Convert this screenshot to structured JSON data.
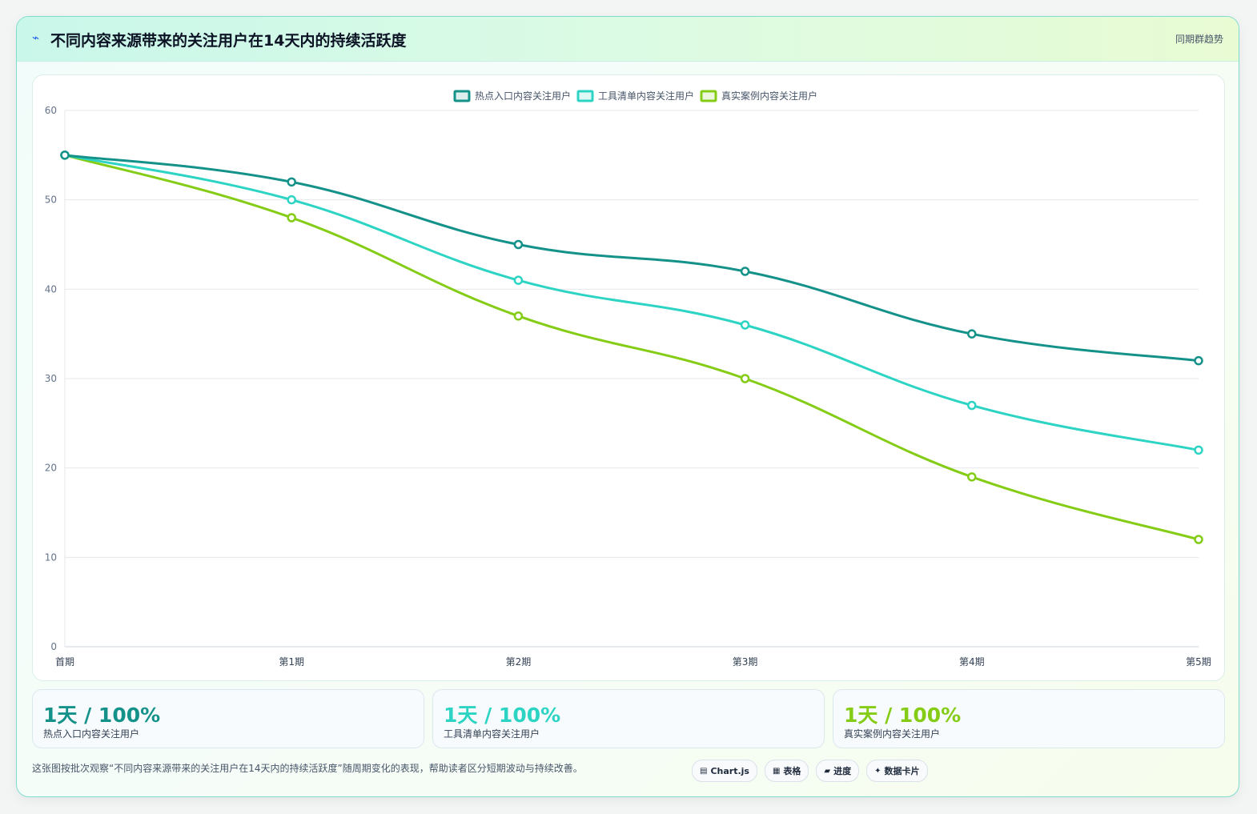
{
  "header": {
    "icon": "lightning-icon",
    "title": "不同内容来源带来的关注用户在14天内的持续活跃度",
    "right_label": "同期群趋势"
  },
  "chart_data": {
    "type": "line",
    "categories": [
      "首期",
      "第1期",
      "第2期",
      "第3期",
      "第4期",
      "第5期"
    ],
    "series": [
      {
        "name": "热点入口内容关注用户",
        "color": "#14928a",
        "values": [
          55,
          52,
          45,
          42,
          35,
          32
        ]
      },
      {
        "name": "工具清单内容关注用户",
        "color": "#2dd4c4",
        "values": [
          55,
          50,
          41,
          36,
          27,
          22
        ]
      },
      {
        "name": "真实案例内容关注用户",
        "color": "#84cc16",
        "values": [
          55,
          48,
          37,
          30,
          19,
          12
        ]
      }
    ],
    "ylim": [
      0,
      60
    ],
    "yticks": [
      0,
      10,
      20,
      30,
      40,
      50,
      60
    ],
    "grid": true,
    "legend": "top-center",
    "title": "",
    "xlabel": "",
    "ylabel": ""
  },
  "stats": [
    {
      "value": "1天 / 100%",
      "label": "热点入口内容关注用户",
      "color": "#14928a"
    },
    {
      "value": "1天 / 100%",
      "label": "工具清单内容关注用户",
      "color": "#2dd4c4"
    },
    {
      "value": "1天 / 100%",
      "label": "真实案例内容关注用户",
      "color": "#84cc16"
    }
  ],
  "footer": {
    "note": "这张图按批次观察“不同内容来源带来的关注用户在14天内的持续活跃度”随周期变化的表现，帮助读者区分短期波动与持续改善。",
    "chips": [
      {
        "icon": "chart-icon",
        "label": "Chart.js"
      },
      {
        "icon": "table-icon",
        "label": "表格"
      },
      {
        "icon": "progress-icon",
        "label": "进度"
      },
      {
        "icon": "sparkle-icon",
        "label": "数据卡片"
      }
    ]
  }
}
